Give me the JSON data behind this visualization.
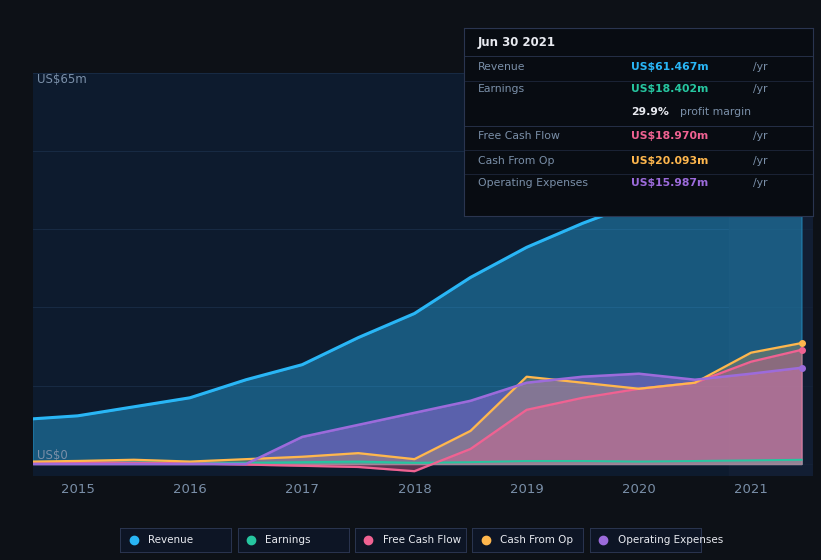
{
  "years": [
    2014.6,
    2015.0,
    2015.5,
    2016.0,
    2016.5,
    2017.0,
    2017.5,
    2018.0,
    2018.5,
    2019.0,
    2019.5,
    2020.0,
    2020.5,
    2021.0,
    2021.45
  ],
  "revenue": [
    7.5,
    8.0,
    9.5,
    11.0,
    14.0,
    16.5,
    21.0,
    25.0,
    31.0,
    36.0,
    40.0,
    43.5,
    50.0,
    57.0,
    61.467
  ],
  "earnings": [
    0.2,
    0.3,
    0.3,
    0.2,
    0.2,
    0.3,
    0.4,
    0.2,
    0.3,
    0.5,
    0.5,
    0.4,
    0.5,
    0.6,
    0.7
  ],
  "free_cash_flow": [
    0.3,
    0.3,
    0.2,
    0.1,
    -0.1,
    -0.3,
    -0.5,
    -1.2,
    2.5,
    9.0,
    11.0,
    12.5,
    13.5,
    17.0,
    18.97
  ],
  "cash_from_op": [
    0.4,
    0.5,
    0.7,
    0.4,
    0.8,
    1.2,
    1.8,
    0.8,
    5.5,
    14.5,
    13.5,
    12.5,
    13.5,
    18.5,
    20.093
  ],
  "op_expenses": [
    0.0,
    0.0,
    0.0,
    0.0,
    0.0,
    4.5,
    6.5,
    8.5,
    10.5,
    13.5,
    14.5,
    15.0,
    14.0,
    15.0,
    15.987
  ],
  "bg_color": "#0d1117",
  "chart_bg": "#0d1b2e",
  "grid_color": "#1a2e48",
  "revenue_color": "#29b6f6",
  "earnings_color": "#26c6a0",
  "fcf_color": "#f06292",
  "cfo_color": "#ffb74d",
  "opex_color": "#9c6bdb",
  "highlight_color": "#142035",
  "text_color_dim": "#7a8fa8",
  "text_color_white": "#e8eaf0",
  "infobox_bg": "#080c12",
  "infobox_border": "#2a3550",
  "legend_bg": "#0d1525",
  "legend_border": "#2a3550"
}
